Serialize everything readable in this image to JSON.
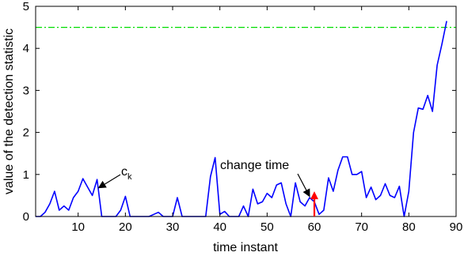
{
  "chart_data": {
    "type": "line",
    "xlabel": "time instant",
    "ylabel": "value of the detection statistic",
    "xlim": [
      1,
      90
    ],
    "ylim": [
      0,
      5
    ],
    "xticks": [
      10,
      20,
      30,
      40,
      50,
      60,
      70,
      80,
      90
    ],
    "yticks": [
      0,
      1,
      2,
      3,
      4,
      5
    ],
    "grid": false,
    "series": [
      {
        "color": "#0000ff",
        "x": [
          1,
          2,
          3,
          4,
          5,
          6,
          7,
          8,
          9,
          10,
          11,
          12,
          13,
          14,
          15,
          16,
          17,
          18,
          19,
          20,
          21,
          22,
          23,
          24,
          25,
          26,
          27,
          28,
          29,
          30,
          31,
          32,
          33,
          34,
          35,
          36,
          37,
          38,
          39,
          40,
          41,
          42,
          43,
          44,
          45,
          46,
          47,
          48,
          49,
          50,
          51,
          52,
          53,
          54,
          55,
          56,
          57,
          58,
          59,
          60,
          61,
          62,
          63,
          64,
          65,
          66,
          67,
          68,
          69,
          70,
          71,
          72,
          73,
          74,
          75,
          76,
          77,
          78,
          79,
          80,
          81,
          82,
          83,
          84,
          85,
          86,
          87,
          88
        ],
        "y": [
          0,
          0,
          0.1,
          0.3,
          0.6,
          0.15,
          0.25,
          0.15,
          0.45,
          0.6,
          0.9,
          0.7,
          0.5,
          0.88,
          0,
          0,
          0,
          0,
          0.15,
          0.48,
          0,
          0,
          0,
          0,
          0,
          0.05,
          0.1,
          0,
          0,
          0,
          0.45,
          0,
          0,
          0,
          0,
          0,
          0,
          0.95,
          1.4,
          0.05,
          0.12,
          0,
          0,
          0,
          0.25,
          0,
          0.65,
          0.3,
          0.35,
          0.55,
          0.45,
          0.75,
          0.8,
          0.3,
          0,
          0.8,
          0.35,
          0.25,
          0.45,
          0.35,
          0.05,
          0.15,
          0.92,
          0.6,
          1.1,
          1.42,
          1.42,
          1.0,
          1.0,
          1.07,
          0.45,
          0.7,
          0.4,
          0.5,
          0.78,
          0.5,
          0.45,
          0.72,
          0,
          0.6,
          2.0,
          2.58,
          2.55,
          2.88,
          2.5,
          3.6,
          4.1,
          4.65
        ]
      }
    ],
    "threshold": {
      "y": 4.5,
      "color": "#00dd00",
      "style": "dash-dot"
    },
    "annotations": [
      {
        "text": "c",
        "subscript": "k",
        "point": [
          14,
          0.7
        ]
      },
      {
        "text": "change time",
        "point": [
          59,
          0.42
        ]
      }
    ],
    "change_marker": {
      "x": 60,
      "y": 0.6,
      "color": "#ff0000"
    }
  }
}
